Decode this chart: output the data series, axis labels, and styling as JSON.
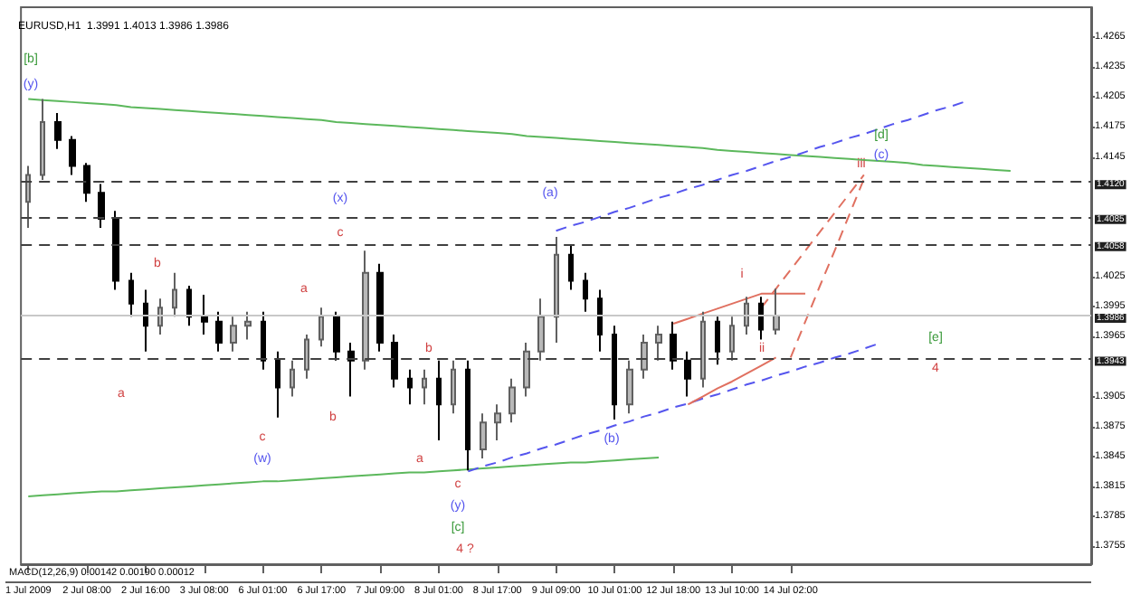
{
  "chart_data": {
    "type": "candlestick",
    "title": "EURUSD,H1  1.3991 1.4013 1.3986 1.3986",
    "categories": [
      "1 Jul 2009",
      null,
      null,
      null,
      "2 Jul 08:00",
      null,
      null,
      null,
      "2 Jul 16:00",
      null,
      null,
      null,
      "3 Jul 08:00",
      null,
      null,
      null,
      "6 Jul 01:00",
      null,
      null,
      null,
      "6 Jul 17:00",
      null,
      null,
      null,
      "7 Jul 09:00",
      null,
      null,
      null,
      "8 Jul 01:00",
      null,
      null,
      null,
      "8 Jul 17:00",
      null,
      null,
      null,
      "9 Jul 09:00",
      null,
      null,
      null,
      "10 Jul 01:00",
      null,
      null,
      null,
      "12 Jul 18:00",
      null,
      null,
      null,
      "13 Jul 10:00",
      null,
      null,
      null,
      "14 Jul 02:00",
      null,
      null,
      null,
      null,
      null,
      null,
      null,
      null,
      null,
      null,
      null,
      null,
      null,
      null,
      null,
      null,
      null,
      null,
      null,
      null
    ],
    "ohlc": [
      [
        1.41,
        1.4136,
        1.4074,
        1.4127
      ],
      [
        1.4127,
        1.4203,
        1.4122,
        1.418
      ],
      [
        1.418,
        1.4189,
        1.4153,
        1.4162
      ],
      [
        1.4162,
        1.4166,
        1.4127,
        1.4136
      ],
      [
        1.4136,
        1.4139,
        1.41,
        1.4109
      ],
      [
        1.4109,
        1.4118,
        1.4074,
        1.4083
      ],
      [
        1.4083,
        1.4091,
        1.4012,
        1.4021
      ],
      [
        1.4021,
        1.4029,
        1.3985,
        1.3998
      ],
      [
        1.3998,
        1.4012,
        1.395,
        1.3976
      ],
      [
        1.3976,
        1.4003,
        1.3967,
        1.3994
      ],
      [
        1.3994,
        1.4029,
        1.3985,
        1.4012
      ],
      [
        1.4012,
        1.4016,
        1.3976,
        1.3985
      ],
      [
        1.3985,
        1.4007,
        1.3967,
        1.398
      ],
      [
        1.398,
        1.399,
        1.395,
        1.3959
      ],
      [
        1.3959,
        1.3985,
        1.395,
        1.3976
      ],
      [
        1.3976,
        1.399,
        1.3962,
        1.398
      ],
      [
        1.398,
        1.399,
        1.3932,
        1.3941
      ],
      [
        1.3941,
        1.395,
        1.3884,
        1.3914
      ],
      [
        1.3914,
        1.3941,
        1.3905,
        1.3932
      ],
      [
        1.3932,
        1.3967,
        1.3923,
        1.3962
      ],
      [
        1.3962,
        1.3994,
        1.3955,
        1.3985
      ],
      [
        1.3985,
        1.399,
        1.3941,
        1.395
      ],
      [
        1.395,
        1.3959,
        1.3905,
        1.3941
      ],
      [
        1.3941,
        1.4051,
        1.3932,
        1.4029
      ],
      [
        1.4029,
        1.4038,
        1.395,
        1.3959
      ],
      [
        1.3959,
        1.3967,
        1.3914,
        1.3923
      ],
      [
        1.3923,
        1.3932,
        1.3897,
        1.3914
      ],
      [
        1.3914,
        1.3932,
        1.3897,
        1.3923
      ],
      [
        1.3923,
        1.3941,
        1.3861,
        1.3897
      ],
      [
        1.3897,
        1.3941,
        1.3888,
        1.3932
      ],
      [
        1.3932,
        1.3941,
        1.3831,
        1.3852
      ],
      [
        1.3852,
        1.3888,
        1.3843,
        1.3879
      ],
      [
        1.3879,
        1.3897,
        1.3861,
        1.3888
      ],
      [
        1.3888,
        1.3923,
        1.3879,
        1.3914
      ],
      [
        1.3914,
        1.3959,
        1.3905,
        1.395
      ],
      [
        1.395,
        1.4003,
        1.3941,
        1.3985
      ],
      [
        1.3985,
        1.4065,
        1.3959,
        1.4047
      ],
      [
        1.4047,
        1.4056,
        1.4012,
        1.4021
      ],
      [
        1.4021,
        1.4029,
        1.399,
        1.4003
      ],
      [
        1.4003,
        1.4012,
        1.395,
        1.3967
      ],
      [
        1.3967,
        1.3976,
        1.3882,
        1.3897
      ],
      [
        1.3897,
        1.3941,
        1.3888,
        1.3932
      ],
      [
        1.3932,
        1.3967,
        1.3923,
        1.3959
      ],
      [
        1.3959,
        1.3976,
        1.3941,
        1.3967
      ],
      [
        1.3967,
        1.398,
        1.3932,
        1.3941
      ],
      [
        1.3941,
        1.395,
        1.3905,
        1.3923
      ],
      [
        1.3923,
        1.399,
        1.3914,
        1.398
      ],
      [
        1.398,
        1.3985,
        1.3937,
        1.395
      ],
      [
        1.395,
        1.3985,
        1.3941,
        1.3976
      ],
      [
        1.3976,
        1.4005,
        1.3967,
        1.3998
      ],
      [
        1.3998,
        1.4005,
        1.3962,
        1.3972
      ],
      [
        1.3972,
        1.4013,
        1.3967,
        1.3986
      ],
      null,
      null,
      null,
      null,
      null,
      null,
      null,
      null,
      null,
      null,
      null,
      null,
      null,
      null,
      null,
      null,
      null,
      null,
      null,
      null,
      null
    ],
    "series": [
      {
        "type": "line",
        "color": "#5cb85c",
        "line_style": "solid",
        "values": [
          1.4203,
          1.4202,
          1.4201,
          1.42,
          1.4199,
          1.4198,
          1.4197,
          1.4195,
          1.4194,
          1.4193,
          1.4192,
          1.4191,
          1.419,
          1.4189,
          1.4188,
          1.4187,
          1.4186,
          1.4185,
          1.4184,
          1.4183,
          1.4182,
          1.418,
          1.4179,
          1.4178,
          1.4177,
          1.4176,
          1.4175,
          1.4174,
          1.4173,
          1.4172,
          1.4171,
          1.417,
          1.4169,
          1.4168,
          1.4166,
          1.4165,
          1.4164,
          1.4163,
          1.4162,
          1.4161,
          1.416,
          1.4159,
          1.4158,
          1.4157,
          1.4156,
          1.4155,
          1.4154,
          1.4152,
          1.4151,
          1.415,
          1.4149,
          1.4148,
          1.4147,
          1.4146,
          1.4145,
          1.4144,
          1.4143,
          1.4142,
          1.4141,
          1.414,
          1.4139,
          1.4137,
          1.4136,
          1.4135,
          1.4134,
          1.4133,
          1.4132,
          1.4131,
          null,
          null,
          null,
          null,
          null
        ]
      },
      {
        "type": "line",
        "color": "#5cb85c",
        "line_style": "solid",
        "values": [
          1.3805,
          1.3806,
          1.3807,
          1.3808,
          1.3809,
          1.381,
          1.381,
          1.3811,
          1.3812,
          1.3813,
          1.3814,
          1.3815,
          1.3816,
          1.3817,
          1.3818,
          1.3819,
          1.382,
          1.382,
          1.3821,
          1.3822,
          1.3823,
          1.3824,
          1.3825,
          1.3826,
          1.3827,
          1.3828,
          1.3829,
          1.3829,
          1.383,
          1.3831,
          1.3832,
          1.3833,
          1.3834,
          1.3835,
          1.3836,
          1.3837,
          1.3838,
          1.3839,
          1.3839,
          1.384,
          1.3841,
          1.3842,
          1.3843,
          1.3844,
          null,
          null,
          null,
          null,
          null,
          null,
          null,
          null,
          null,
          null,
          null,
          null,
          null,
          null,
          null,
          null,
          null,
          null,
          null,
          null,
          null,
          null,
          null,
          null,
          null,
          null,
          null,
          null,
          null
        ]
      },
      {
        "type": "line",
        "color": "#5555ee",
        "line_style": "dashed",
        "values": [
          null,
          null,
          null,
          null,
          null,
          null,
          null,
          null,
          null,
          null,
          null,
          null,
          null,
          null,
          null,
          null,
          null,
          null,
          null,
          null,
          null,
          null,
          null,
          null,
          null,
          null,
          null,
          null,
          null,
          null,
          1.383,
          1.3835,
          1.3839,
          1.3844,
          1.3848,
          1.3853,
          1.3857,
          1.3862,
          1.3867,
          1.3871,
          1.3876,
          1.388,
          1.3885,
          1.3889,
          1.3894,
          1.3898,
          1.3903,
          1.3907,
          1.3912,
          1.3917,
          1.3921,
          1.3926,
          1.393,
          1.3935,
          1.3939,
          1.3944,
          1.3948,
          1.3953,
          1.3958,
          null,
          null,
          null,
          null,
          null,
          null,
          null,
          null,
          null,
          null,
          null,
          null,
          null,
          null
        ]
      },
      {
        "type": "line",
        "color": "#5555ee",
        "line_style": "dashed",
        "values": [
          null,
          null,
          null,
          null,
          null,
          null,
          null,
          null,
          null,
          null,
          null,
          null,
          null,
          null,
          null,
          null,
          null,
          null,
          null,
          null,
          null,
          null,
          null,
          null,
          null,
          null,
          null,
          null,
          null,
          null,
          null,
          null,
          null,
          null,
          null,
          null,
          1.4071,
          1.4076,
          1.408,
          1.4085,
          1.409,
          1.4094,
          1.4099,
          1.4104,
          1.4108,
          1.4113,
          1.4117,
          1.4122,
          1.4127,
          1.4131,
          1.4136,
          1.4141,
          1.4145,
          1.415,
          1.4155,
          1.4159,
          1.4164,
          1.4168,
          1.4173,
          1.4178,
          1.4182,
          1.4187,
          1.4192,
          1.4196,
          1.4201,
          null,
          null,
          null,
          null,
          null,
          null,
          null,
          null
        ]
      },
      {
        "type": "line",
        "color": "#e07060",
        "line_style": "solid",
        "values": [
          null,
          null,
          null,
          null,
          null,
          null,
          null,
          null,
          null,
          null,
          null,
          null,
          null,
          null,
          null,
          null,
          null,
          null,
          null,
          null,
          null,
          null,
          null,
          null,
          null,
          null,
          null,
          null,
          null,
          null,
          null,
          null,
          null,
          null,
          null,
          null,
          null,
          null,
          null,
          null,
          null,
          null,
          null,
          null,
          1.3978,
          1.3983,
          1.3988,
          1.3993,
          1.3998,
          1.4003,
          1.4008,
          1.4008,
          1.4008,
          1.4008,
          null,
          null,
          null,
          null,
          null,
          null,
          null,
          null,
          null,
          null,
          null,
          null,
          null,
          null,
          null,
          null,
          null,
          null,
          null
        ]
      },
      {
        "type": "line",
        "color": "#e07060",
        "line_style": "solid",
        "values": [
          null,
          null,
          null,
          null,
          null,
          null,
          null,
          null,
          null,
          null,
          null,
          null,
          null,
          null,
          null,
          null,
          null,
          null,
          null,
          null,
          null,
          null,
          null,
          null,
          null,
          null,
          null,
          null,
          null,
          null,
          null,
          null,
          null,
          null,
          null,
          null,
          null,
          null,
          null,
          null,
          null,
          null,
          null,
          null,
          null,
          1.3897,
          1.3905,
          1.3913,
          1.392,
          1.3928,
          1.3936,
          1.3944,
          null,
          null,
          null,
          null,
          null,
          null,
          null,
          null,
          null,
          null,
          null,
          null,
          null,
          null,
          null,
          null,
          null,
          null,
          null,
          null,
          null
        ]
      },
      {
        "type": "line",
        "color": "#e07060",
        "line_style": "dashed",
        "values": [
          null,
          null,
          null,
          null,
          null,
          null,
          null,
          null,
          null,
          null,
          null,
          null,
          null,
          null,
          null,
          null,
          null,
          null,
          null,
          null,
          null,
          null,
          null,
          null,
          null,
          null,
          null,
          null,
          null,
          null,
          null,
          null,
          null,
          null,
          null,
          null,
          null,
          null,
          null,
          null,
          null,
          null,
          null,
          null,
          null,
          null,
          null,
          null,
          null,
          null,
          1.3994,
          1.4013,
          1.4032,
          1.4051,
          1.407,
          1.4089,
          1.4108,
          1.4127,
          null,
          null,
          null,
          null,
          null,
          null,
          null,
          null,
          null,
          null,
          null,
          null,
          null,
          null,
          null
        ]
      },
      {
        "type": "line",
        "color": "#e07060",
        "line_style": "dashed",
        "values": [
          null,
          null,
          null,
          null,
          null,
          null,
          null,
          null,
          null,
          null,
          null,
          null,
          null,
          null,
          null,
          null,
          null,
          null,
          null,
          null,
          null,
          null,
          null,
          null,
          null,
          null,
          null,
          null,
          null,
          null,
          null,
          null,
          null,
          null,
          null,
          null,
          null,
          null,
          null,
          null,
          null,
          null,
          null,
          null,
          null,
          null,
          null,
          null,
          null,
          null,
          null,
          null,
          1.3944,
          1.398,
          1.4016,
          1.4051,
          1.4087,
          1.4123,
          null,
          null,
          null,
          null,
          null,
          null,
          null,
          null,
          null,
          null,
          null,
          null,
          null,
          null,
          null
        ]
      }
    ],
    "ref_lines": [
      {
        "axis": "y",
        "value": 1.412,
        "label": "1.4120",
        "color": "#404040",
        "line_style": "dashed"
      },
      {
        "axis": "y",
        "value": 1.4085,
        "label": "1.4085",
        "color": "#404040",
        "line_style": "dashed"
      },
      {
        "axis": "y",
        "value": 1.4058,
        "label": "1.4058",
        "color": "#404040",
        "line_style": "dashed"
      },
      {
        "axis": "y",
        "value": 1.3943,
        "label": "1.3943",
        "color": "#404040",
        "line_style": "dashed"
      },
      {
        "axis": "y",
        "value": 1.3986,
        "label": "1.3986",
        "color": "#c8c8c8",
        "line_style": "solid"
      }
    ],
    "annotations": [
      "[b]",
      "(y)",
      "a",
      "b",
      "c",
      "(w)",
      "a",
      "b",
      "(x)",
      "c",
      "a",
      "b",
      "c",
      "(y)",
      "[c]",
      "4 ?",
      "(a)",
      "(b)",
      "i",
      "ii",
      "iii",
      "[d]",
      "(c)",
      "[e]",
      "4",
      "MACD(12,26,9) 0.00142 0.00190 0.00012"
    ],
    "ylim": [
      1.3737,
      1.4295
    ],
    "yticks": [
      1.3755,
      1.3785,
      1.3815,
      1.3845,
      1.3875,
      1.3905,
      1.3965,
      1.3995,
      1.4025,
      1.4145,
      1.4175,
      1.4205,
      1.4235,
      1.4265
    ],
    "grid": false
  }
}
